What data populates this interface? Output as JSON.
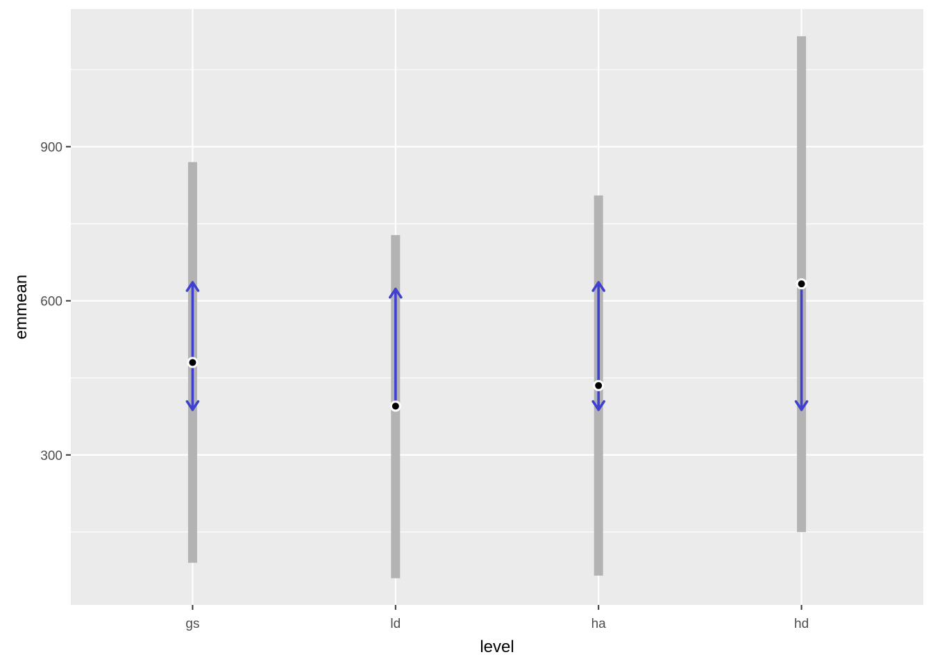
{
  "chart_data": {
    "type": "scatter",
    "title": "",
    "xlabel": "level",
    "ylabel": "emmean",
    "categories": [
      "gs",
      "ld",
      "ha",
      "hd"
    ],
    "y_ticks": [
      300,
      600,
      900
    ],
    "ylim": [
      8,
      1168
    ],
    "grid": true,
    "panel_background": "#ebebeb",
    "grid_color": "#ffffff",
    "ci_color": "#b3b3b3",
    "arrow_color": "#4040d0",
    "point_color": "#000000",
    "emmean": [
      480,
      395,
      435,
      633
    ],
    "ci_low": [
      90,
      60,
      65,
      150
    ],
    "ci_high": [
      870,
      728,
      805,
      1115
    ],
    "comparison_arrows": [
      {
        "level": "gs",
        "up_to": 636,
        "down_to": 388
      },
      {
        "level": "ld",
        "up_to": 623,
        "down_to": null
      },
      {
        "level": "ha",
        "up_to": 636,
        "down_to": 388
      },
      {
        "level": "hd",
        "up_to": null,
        "down_to": 388
      }
    ]
  }
}
